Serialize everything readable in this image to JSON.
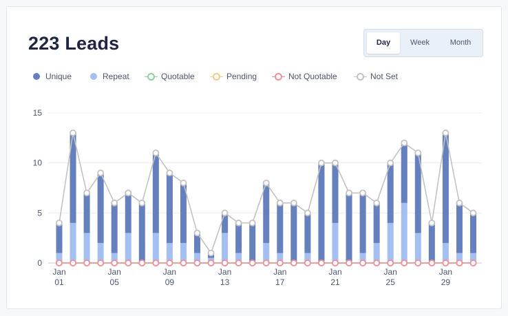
{
  "header": {
    "title": "223 Leads"
  },
  "range_toggle": {
    "options": [
      "Day",
      "Week",
      "Month"
    ],
    "active": "Day"
  },
  "legend": [
    {
      "label": "Unique",
      "style": "dot",
      "color": "#6580bd"
    },
    {
      "label": "Repeat",
      "style": "dot",
      "color": "#a5bff2"
    },
    {
      "label": "Quotable",
      "style": "ring",
      "color": "#8fcf9b"
    },
    {
      "label": "Pending",
      "style": "ring",
      "color": "#f6c98a"
    },
    {
      "label": "Not Quotable",
      "style": "ring",
      "color": "#ef8f97"
    },
    {
      "label": "Not Set",
      "style": "ring",
      "color": "#c2c2c2"
    }
  ],
  "chart_data": {
    "type": "bar",
    "stacked": true,
    "ylim": [
      0,
      15
    ],
    "yticks": [
      0,
      5,
      10,
      15
    ],
    "grid": true,
    "legend_position": "top-left",
    "categories": [
      "Jan 01",
      "Jan 02",
      "Jan 03",
      "Jan 04",
      "Jan 05",
      "Jan 06",
      "Jan 07",
      "Jan 08",
      "Jan 09",
      "Jan 10",
      "Jan 11",
      "Jan 12",
      "Jan 13",
      "Jan 14",
      "Jan 15",
      "Jan 16",
      "Jan 17",
      "Jan 18",
      "Jan 19",
      "Jan 20",
      "Jan 21",
      "Jan 22",
      "Jan 23",
      "Jan 24",
      "Jan 25",
      "Jan 26",
      "Jan 27",
      "Jan 28",
      "Jan 29",
      "Jan 30",
      "Jan 31"
    ],
    "tick_labels": [
      {
        "index": 0,
        "month": "Jan",
        "day": "01"
      },
      {
        "index": 4,
        "month": "Jan",
        "day": "05"
      },
      {
        "index": 8,
        "month": "Jan",
        "day": "09"
      },
      {
        "index": 12,
        "month": "Jan",
        "day": "13"
      },
      {
        "index": 16,
        "month": "Jan",
        "day": "17"
      },
      {
        "index": 20,
        "month": "Jan",
        "day": "21"
      },
      {
        "index": 24,
        "month": "Jan",
        "day": "25"
      },
      {
        "index": 28,
        "month": "Jan",
        "day": "29"
      }
    ],
    "series": [
      {
        "name": "Repeat",
        "kind": "bar",
        "color": "#a5bff2",
        "values": [
          1,
          4,
          3,
          2,
          1,
          3,
          0,
          3,
          2,
          2,
          1,
          0.5,
          3,
          1,
          0,
          2,
          1,
          0,
          1,
          0,
          4,
          0,
          1,
          2,
          4,
          6,
          3,
          0,
          2,
          1,
          1
        ]
      },
      {
        "name": "Unique",
        "kind": "bar",
        "color": "#6580bd",
        "values": [
          3,
          9,
          4,
          7,
          5,
          4,
          6,
          8,
          7,
          6,
          2,
          0.5,
          2,
          3,
          4,
          6,
          5,
          6,
          4,
          10,
          6,
          7,
          6,
          4,
          6,
          6,
          8,
          4,
          11,
          5,
          4
        ]
      },
      {
        "name": "Not Set",
        "kind": "line",
        "color": "#c2c2c2",
        "values": [
          4,
          13,
          7,
          9,
          6,
          7,
          6,
          11,
          9,
          8,
          3,
          1,
          5,
          4,
          4,
          8,
          6,
          6,
          5,
          10,
          10,
          7,
          7,
          6,
          10,
          12,
          11,
          4,
          13,
          6,
          5
        ]
      },
      {
        "name": "Not Quotable",
        "kind": "line",
        "color": "#ef8f97",
        "values": [
          0,
          0,
          0,
          0,
          0,
          0,
          0,
          0,
          0,
          0,
          0,
          0,
          0,
          0,
          0,
          0,
          0,
          0,
          0,
          0,
          0,
          0,
          0,
          0,
          0,
          0,
          0,
          0,
          0,
          0,
          0
        ]
      },
      {
        "name": "Quotable",
        "kind": "line",
        "color": "#8fcf9b",
        "values": [
          0,
          0,
          0,
          0,
          0,
          0,
          0,
          0,
          0,
          0,
          0,
          0,
          0,
          0,
          0,
          0,
          0,
          0,
          0,
          0,
          0,
          0,
          0,
          0,
          0,
          0,
          0,
          0,
          0,
          0,
          0
        ]
      },
      {
        "name": "Pending",
        "kind": "line",
        "color": "#f6c98a",
        "values": [
          0,
          0,
          0,
          0,
          0,
          0,
          0,
          0,
          0,
          0,
          0,
          0,
          0,
          0,
          0,
          0,
          0,
          0,
          0,
          0,
          0,
          0,
          0,
          0,
          0,
          0,
          0,
          0,
          0,
          0,
          0
        ]
      }
    ]
  }
}
